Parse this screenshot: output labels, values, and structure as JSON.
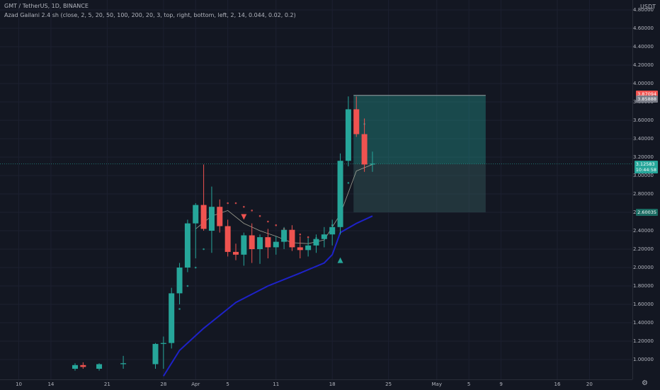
{
  "header": {
    "title": "GMT / TetherUS, 1D, BINANCE",
    "indicator": "Azad Gailani 2.4 sh (close, 2, 5, 20, 50, 100, 200, 20, 3, top, right, bottom, left, 2, 14, 0.044, 0.02, 0.2)",
    "quote_currency": "USDT"
  },
  "colors": {
    "background": "#131722",
    "up": "#26a69a",
    "down": "#ef5350",
    "ma_slow": "#1e22c8",
    "ma_fast": "#d8d8c0",
    "position_profit": "#26a69a",
    "position_loss": "#355a5e"
  },
  "price_axis_labels": [
    "4.80000",
    "4.60000",
    "4.40000",
    "4.20000",
    "4.00000",
    "3.80000",
    "3.60000",
    "3.40000",
    "3.20000",
    "3.00000",
    "2.80000",
    "2.60000",
    "2.40000",
    "2.20000",
    "2.00000",
    "1.80000",
    "1.60000",
    "1.40000",
    "1.20000",
    "1.00000"
  ],
  "price_tags": [
    {
      "value": "3.87094",
      "price": 3.87094,
      "color": "#ef5350"
    },
    {
      "value": "3.85888",
      "price": 3.85888,
      "color": "#787b86"
    },
    {
      "value": "3.12583",
      "sub": "10:44:58",
      "price": 3.12583,
      "color": "#26a69a"
    },
    {
      "value": "2.60035",
      "price": 2.60035,
      "color": "#1a6b62"
    }
  ],
  "time_axis_labels": [
    {
      "label": "10",
      "day": -7
    },
    {
      "label": "14",
      "day": -3
    },
    {
      "label": "21",
      "day": 4
    },
    {
      "label": "28",
      "day": 11
    },
    {
      "label": "Apr",
      "day": 15
    },
    {
      "label": "5",
      "day": 19
    },
    {
      "label": "11",
      "day": 25
    },
    {
      "label": "18",
      "day": 32
    },
    {
      "label": "25",
      "day": 39
    },
    {
      "label": "May",
      "day": 45
    },
    {
      "label": "5",
      "day": 49
    },
    {
      "label": "9",
      "day": 53
    },
    {
      "label": "16",
      "day": 60
    },
    {
      "label": "20",
      "day": 64
    }
  ],
  "chart_data": {
    "type": "candlestick",
    "symbol": "GMT / TetherUS",
    "interval": "1D",
    "exchange": "BINANCE",
    "ylim": [
      0.92,
      4.92
    ],
    "candles": [
      {
        "d": 0,
        "o": 0.9,
        "h": 0.96,
        "l": 0.88,
        "c": 0.94
      },
      {
        "d": 1,
        "o": 0.94,
        "h": 0.97,
        "l": 0.9,
        "c": 0.92
      },
      {
        "d": 3,
        "o": 0.9,
        "h": 0.96,
        "l": 0.88,
        "c": 0.95
      },
      {
        "d": 6,
        "o": 0.95,
        "h": 1.04,
        "l": 0.9,
        "c": 0.96
      },
      {
        "d": 10,
        "o": 0.95,
        "h": 1.18,
        "l": 0.9,
        "c": 1.17
      },
      {
        "d": 11,
        "o": 1.17,
        "h": 1.25,
        "l": 0.9,
        "c": 1.18
      },
      {
        "d": 12,
        "o": 1.18,
        "h": 1.78,
        "l": 1.12,
        "c": 1.72
      },
      {
        "d": 13,
        "o": 1.72,
        "h": 2.05,
        "l": 1.6,
        "c": 2.0
      },
      {
        "d": 14,
        "o": 2.0,
        "h": 2.52,
        "l": 1.95,
        "c": 2.48
      },
      {
        "d": 15,
        "o": 2.48,
        "h": 2.7,
        "l": 2.1,
        "c": 2.68
      },
      {
        "d": 16,
        "o": 2.68,
        "h": 3.12,
        "l": 2.4,
        "c": 2.42
      },
      {
        "d": 17,
        "o": 2.4,
        "h": 2.88,
        "l": 2.16,
        "c": 2.66
      },
      {
        "d": 18,
        "o": 2.66,
        "h": 2.74,
        "l": 2.38,
        "c": 2.45
      },
      {
        "d": 19,
        "o": 2.45,
        "h": 2.52,
        "l": 2.12,
        "c": 2.17
      },
      {
        "d": 20,
        "o": 2.17,
        "h": 2.26,
        "l": 2.08,
        "c": 2.14
      },
      {
        "d": 21,
        "o": 2.14,
        "h": 2.38,
        "l": 2.02,
        "c": 2.35
      },
      {
        "d": 22,
        "o": 2.35,
        "h": 2.48,
        "l": 2.05,
        "c": 2.2
      },
      {
        "d": 23,
        "o": 2.2,
        "h": 2.36,
        "l": 2.04,
        "c": 2.33
      },
      {
        "d": 24,
        "o": 2.33,
        "h": 2.42,
        "l": 2.1,
        "c": 2.22
      },
      {
        "d": 25,
        "o": 2.22,
        "h": 2.34,
        "l": 2.14,
        "c": 2.28
      },
      {
        "d": 26,
        "o": 2.28,
        "h": 2.44,
        "l": 2.2,
        "c": 2.41
      },
      {
        "d": 27,
        "o": 2.41,
        "h": 2.46,
        "l": 2.18,
        "c": 2.22
      },
      {
        "d": 28,
        "o": 2.22,
        "h": 2.34,
        "l": 2.1,
        "c": 2.19
      },
      {
        "d": 29,
        "o": 2.19,
        "h": 2.32,
        "l": 2.12,
        "c": 2.24
      },
      {
        "d": 30,
        "o": 2.24,
        "h": 2.36,
        "l": 2.16,
        "c": 2.31
      },
      {
        "d": 31,
        "o": 2.31,
        "h": 2.44,
        "l": 2.22,
        "c": 2.36
      },
      {
        "d": 32,
        "o": 2.36,
        "h": 2.52,
        "l": 2.24,
        "c": 2.44
      },
      {
        "d": 33,
        "o": 2.44,
        "h": 3.24,
        "l": 2.36,
        "c": 3.16
      },
      {
        "d": 34,
        "o": 3.16,
        "h": 3.86,
        "l": 3.1,
        "c": 3.72
      },
      {
        "d": 35,
        "o": 3.72,
        "h": 3.86,
        "l": 3.42,
        "c": 3.45
      },
      {
        "d": 36,
        "o": 3.45,
        "h": 3.62,
        "l": 3.04,
        "c": 3.12
      },
      {
        "d": 37,
        "o": 3.12,
        "h": 3.26,
        "l": 3.04,
        "c": 3.13
      }
    ],
    "ma_slow": [
      [
        11,
        0.82
      ],
      [
        13,
        1.1
      ],
      [
        16,
        1.34
      ],
      [
        18,
        1.48
      ],
      [
        20,
        1.62
      ],
      [
        24,
        1.8
      ],
      [
        28,
        1.94
      ],
      [
        31,
        2.05
      ],
      [
        32,
        2.14
      ],
      [
        33,
        2.38
      ],
      [
        35,
        2.48
      ],
      [
        37,
        2.56
      ]
    ],
    "ma_fast": [
      [
        15,
        2.42
      ],
      [
        17,
        2.56
      ],
      [
        19,
        2.62
      ],
      [
        21,
        2.48
      ],
      [
        23,
        2.4
      ],
      [
        25,
        2.34
      ],
      [
        27,
        2.27
      ],
      [
        29,
        2.26
      ],
      [
        31,
        2.3
      ],
      [
        33,
        2.58
      ],
      [
        35,
        3.05
      ],
      [
        37,
        3.12
      ]
    ],
    "sar_points": [
      [
        13,
        1.55
      ],
      [
        14,
        1.8
      ],
      [
        15,
        2.0
      ],
      [
        16,
        2.2
      ],
      [
        17,
        2.45
      ],
      [
        18,
        2.62
      ],
      [
        19,
        2.7
      ],
      [
        20,
        2.7
      ],
      [
        21,
        2.66
      ],
      [
        22,
        2.62
      ],
      [
        23,
        2.56
      ],
      [
        24,
        2.5
      ],
      [
        25,
        2.46
      ],
      [
        26,
        2.42
      ],
      [
        27,
        2.38
      ],
      [
        28,
        2.36
      ],
      [
        29,
        2.33
      ],
      [
        30,
        2.32
      ],
      [
        32,
        2.46
      ],
      [
        33,
        2.6
      ],
      [
        34,
        2.92
      ],
      [
        35,
        3.7
      ],
      [
        36,
        3.56
      ]
    ],
    "signals": [
      {
        "type": "sell",
        "d": 21,
        "price": 2.55
      },
      {
        "type": "buy",
        "d": 33,
        "price": 2.08
      }
    ],
    "position": {
      "start_day": 35,
      "end_day": 51,
      "entry": 3.12583,
      "target": 3.87094,
      "stop": 2.60035
    }
  }
}
